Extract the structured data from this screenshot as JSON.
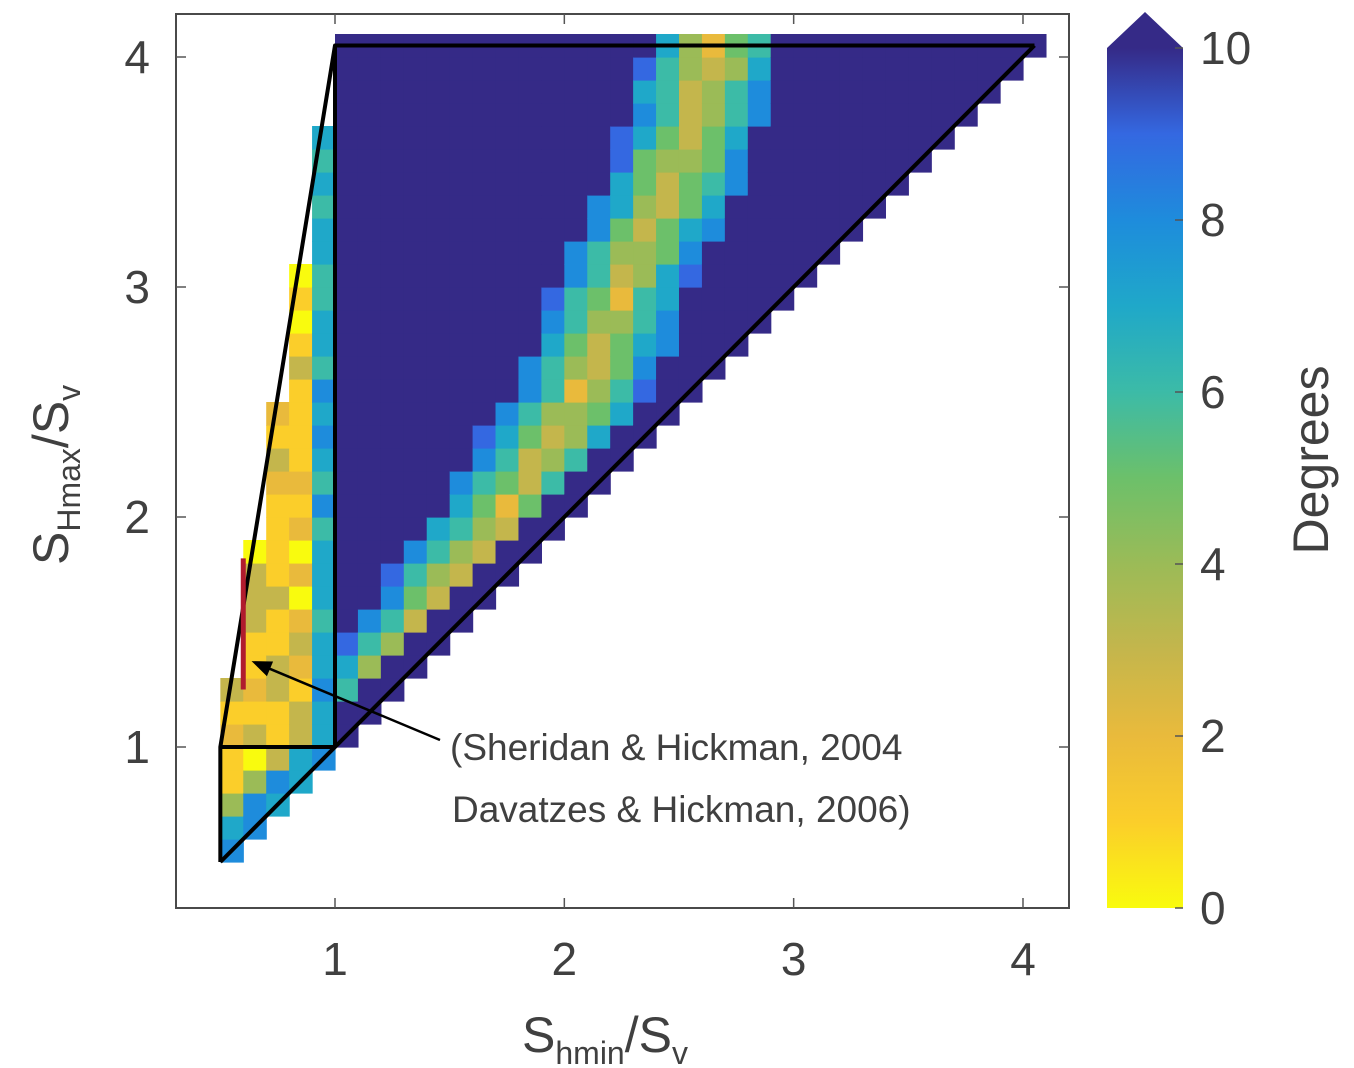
{
  "chart_data": {
    "type": "heatmap",
    "title": "",
    "xlabel": {
      "main": "S",
      "sub": "hmin",
      "suffix": "/S",
      "suffix_sub": "v"
    },
    "ylabel": {
      "main": "S",
      "sub": "Hmax",
      "suffix": "/S",
      "suffix_sub": "v"
    },
    "xlim": [
      0.3,
      4.2
    ],
    "ylim": [
      0.3,
      4.2
    ],
    "xticks": [
      1,
      2,
      3,
      4
    ],
    "yticks": [
      1,
      2,
      3,
      4
    ],
    "xtick_labels": [
      "1",
      "2",
      "3",
      "4"
    ],
    "ytick_labels": [
      "1",
      "2",
      "3",
      "4"
    ],
    "colorbar": {
      "label": "Degrees",
      "min": 0,
      "max": 10,
      "ticks": [
        0,
        2,
        4,
        6,
        8,
        10
      ],
      "tick_labels": [
        "0",
        "2",
        "4",
        "6",
        "8",
        "10"
      ],
      "extend": "max",
      "colormap": "parula",
      "colors": [
        "#f9fb0e",
        "#fbce2a",
        "#e9ba3c",
        "#c4b64c",
        "#9bbb57",
        "#6cc06a",
        "#3cbba7",
        "#1fa8c9",
        "#1e8cdc",
        "#3468e1",
        "#352a87"
      ]
    },
    "grid_step": 0.1,
    "grid_range": [
      0.5,
      4.05
    ],
    "fields": {
      "strike_slip_band": {
        "x_range": [
          0.5,
          1.0
        ],
        "y_range": [
          1.0,
          4.05
        ],
        "description_values": "mostly 0-3 degrees",
        "edge_value": 7
      },
      "normal_fault_corner": {
        "x_range": [
          0.5,
          1.0
        ],
        "y_range": [
          0.5,
          1.0
        ],
        "values": "0-1 degrees with up to 8 degrees near diagonal"
      },
      "thrust_field": {
        "background": 10,
        "ridge": [
          [
            1.15,
            1.2
          ],
          [
            1.5,
            1.7
          ],
          [
            1.8,
            2.1
          ],
          [
            2.1,
            2.6
          ],
          [
            2.3,
            3.1
          ],
          [
            2.5,
            3.5
          ],
          [
            2.65,
            4.0
          ]
        ],
        "ridge_min": 2,
        "ridge_halfwidth": 0.3
      }
    },
    "boundary_lines": [
      {
        "points": [
          [
            0.5,
            0.5
          ],
          [
            4.05,
            4.05
          ]
        ]
      },
      {
        "points": [
          [
            0.5,
            0.5
          ],
          [
            0.5,
            1.0
          ],
          [
            1.0,
            4.05
          ],
          [
            4.05,
            4.05
          ]
        ]
      },
      {
        "points": [
          [
            0.5,
            1.0
          ],
          [
            1.0,
            1.0
          ]
        ]
      },
      {
        "points": [
          [
            1.0,
            1.0
          ],
          [
            1.0,
            4.05
          ]
        ]
      }
    ],
    "observation": {
      "x": 0.6,
      "y_range": [
        1.25,
        1.82
      ],
      "color": "#b01c2e"
    },
    "annotation": {
      "lines": [
        "(Sheridan & Hickman, 2004",
        "Davatzes & Hickman, 2006)"
      ],
      "arrow_target": [
        0.62,
        1.38
      ]
    }
  }
}
